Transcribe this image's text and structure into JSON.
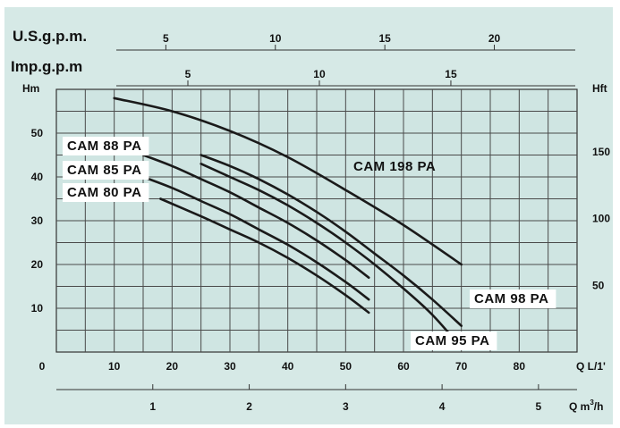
{
  "colors": {
    "background": "#d6e9e6",
    "plot_area": "#cfe5e2",
    "label_box": "#ffffff",
    "grid": "#4a4a4a",
    "curve": "#1a1a1a"
  },
  "chart_data": {
    "type": "line",
    "title": "",
    "xlabel": "Q L/1'",
    "ylabel": "Hm",
    "xlim": [
      0,
      90
    ],
    "ylim": [
      0,
      60
    ],
    "grid": true,
    "x_ticks": [
      0,
      10,
      20,
      30,
      40,
      50,
      60,
      70,
      80
    ],
    "x_tick_labels": [
      "0",
      "10",
      "20",
      "30",
      "40",
      "50",
      "60",
      "70",
      "80"
    ],
    "y_ticks": [
      10,
      20,
      30,
      40,
      50
    ],
    "y_tick_labels": [
      "10",
      "20",
      "30",
      "40",
      "50"
    ],
    "secondary_axes": {
      "right": {
        "label": "Hft",
        "ticks": [
          {
            "value": 50,
            "label": "50"
          },
          {
            "value": 100,
            "label": "100"
          },
          {
            "value": 150,
            "label": "150"
          }
        ]
      },
      "bottom": {
        "label": "Q m³/h",
        "label_main": "Q m",
        "label_sup": "3",
        "label_end": "/h",
        "ticks": [
          {
            "value": 1,
            "label": "1"
          },
          {
            "value": 2,
            "label": "2"
          },
          {
            "value": 3,
            "label": "3"
          },
          {
            "value": 4,
            "label": "4"
          },
          {
            "value": 5,
            "label": "5"
          }
        ]
      },
      "top_us": {
        "label": "U.S.g.p.m.",
        "ticks": [
          {
            "value": 5,
            "label": "5"
          },
          {
            "value": 10,
            "label": "10"
          },
          {
            "value": 15,
            "label": "15"
          },
          {
            "value": 20,
            "label": "20"
          }
        ]
      },
      "top_imp": {
        "label": "Imp.g.p.m",
        "ticks": [
          {
            "value": 5,
            "label": "5"
          },
          {
            "value": 10,
            "label": "10"
          },
          {
            "value": 15,
            "label": "15"
          }
        ]
      }
    },
    "series": [
      {
        "name": "CAM 198 PA",
        "x": [
          10,
          20,
          30,
          40,
          50,
          60,
          70
        ],
        "y": [
          58,
          55,
          50.5,
          44.5,
          37,
          29,
          20
        ]
      },
      {
        "name": "CAM 98 PA",
        "x": [
          25,
          30,
          35,
          40,
          45,
          50,
          55,
          60,
          65,
          70
        ],
        "y": [
          45,
          42.5,
          39.5,
          36,
          32,
          27.5,
          22.5,
          17.5,
          12,
          6
        ]
      },
      {
        "name": "CAM 95 PA",
        "x": [
          25,
          30,
          35,
          40,
          45,
          50,
          55,
          60,
          65,
          70
        ],
        "y": [
          43,
          40,
          37,
          33.5,
          29.5,
          25,
          20,
          14.5,
          8.5,
          1
        ]
      },
      {
        "name": "CAM 88 PA",
        "x": [
          15,
          20,
          25,
          30,
          35,
          40,
          45,
          50,
          54
        ],
        "y": [
          45,
          42.5,
          39.5,
          36.5,
          33,
          29.5,
          25.5,
          21,
          17
        ]
      },
      {
        "name": "CAM 85 PA",
        "x": [
          15,
          20,
          25,
          30,
          35,
          40,
          45,
          50,
          54
        ],
        "y": [
          40,
          37.5,
          34.5,
          31.5,
          28,
          24.5,
          20.5,
          16,
          12
        ]
      },
      {
        "name": "CAM 80 PA",
        "x": [
          18,
          25,
          30,
          35,
          40,
          45,
          50,
          54
        ],
        "y": [
          35,
          31,
          28,
          25,
          21.5,
          17.5,
          13,
          9
        ]
      }
    ]
  }
}
